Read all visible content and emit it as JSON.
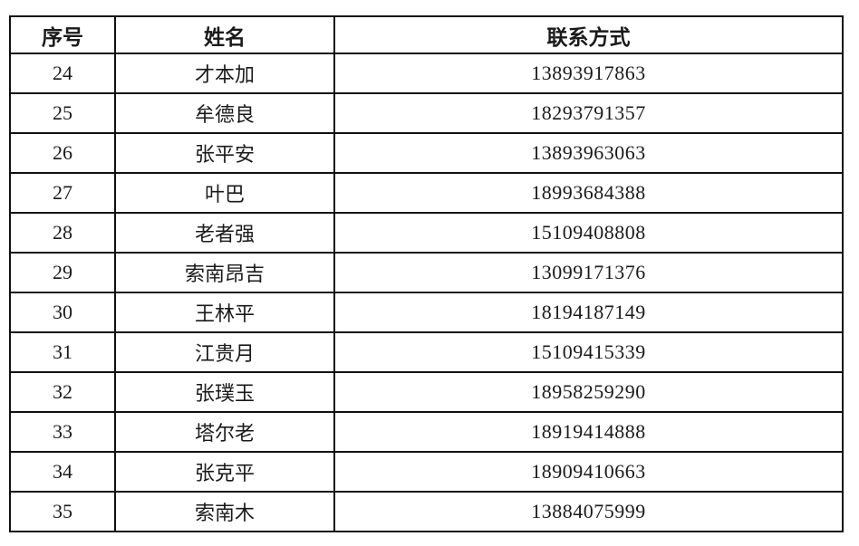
{
  "table": {
    "columns": [
      {
        "key": "no",
        "label": "序号"
      },
      {
        "key": "name",
        "label": "姓名"
      },
      {
        "key": "phone",
        "label": "联系方式"
      }
    ],
    "rows": [
      {
        "no": "24",
        "name": "才本加",
        "phone": "13893917863"
      },
      {
        "no": "25",
        "name": "牟德良",
        "phone": "18293791357"
      },
      {
        "no": "26",
        "name": "张平安",
        "phone": "13893963063"
      },
      {
        "no": "27",
        "name": "叶巴",
        "phone": "18993684388"
      },
      {
        "no": "28",
        "name": "老者强",
        "phone": "15109408808"
      },
      {
        "no": "29",
        "name": "索南昂吉",
        "phone": "13099171376"
      },
      {
        "no": "30",
        "name": "王林平",
        "phone": "18194187149"
      },
      {
        "no": "31",
        "name": "江贵月",
        "phone": "15109415339"
      },
      {
        "no": "32",
        "name": "张璞玉",
        "phone": "18958259290"
      },
      {
        "no": "33",
        "name": "塔尔老",
        "phone": "18919414888"
      },
      {
        "no": "34",
        "name": "张克平",
        "phone": "18909410663"
      },
      {
        "no": "35",
        "name": "索南木",
        "phone": "13884075999"
      }
    ],
    "colors": {
      "border": "#111111",
      "text": "#1a1a1a",
      "background": "#ffffff"
    }
  }
}
